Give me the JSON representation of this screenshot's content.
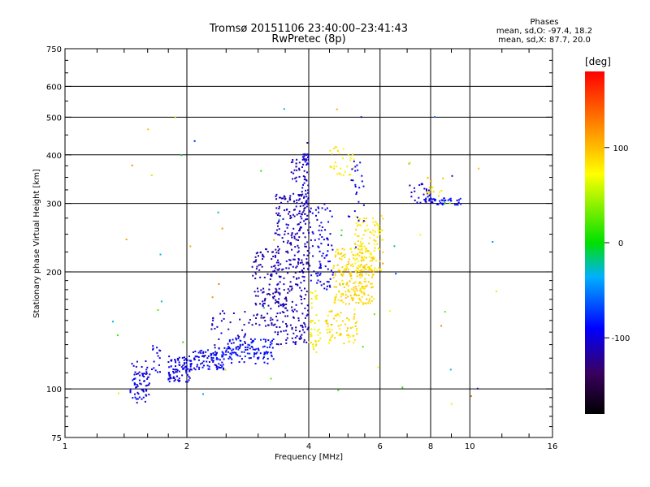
{
  "header": {
    "title_line1": "Tromsø 20151106 23:40:00–23:41:43",
    "title_line2": "RwPretec (8p)"
  },
  "info": {
    "heading": "Phases",
    "line_o": "mean, sd,O: -97.4, 18.2",
    "line_x": "mean, sd,X:  87.7, 20.0"
  },
  "colorbar": {
    "label": "[deg]",
    "ticks": [
      "100",
      "0",
      "-100"
    ],
    "tick_values": [
      100,
      0,
      -100
    ],
    "range": [
      -180,
      180
    ]
  },
  "chart_data": {
    "type": "scatter",
    "xlabel": "Frequency [MHz]",
    "ylabel": "Stationary phase Virtual Height [km]",
    "x_scale": "log",
    "y_scale": "log",
    "xlim": [
      1,
      16
    ],
    "ylim": [
      75,
      750
    ],
    "xticks": [
      1,
      2,
      4,
      6,
      8,
      10,
      16
    ],
    "xtick_labels": [
      "1",
      "2",
      "4",
      "6",
      "8",
      "10",
      "16"
    ],
    "yticks": [
      75,
      100,
      200,
      300,
      400,
      500,
      600,
      750
    ],
    "ytick_labels": [
      "75",
      "100",
      "200",
      "300",
      "400",
      "500",
      "600",
      "750"
    ],
    "x_gridlines": [
      2,
      4,
      6,
      8,
      10
    ],
    "y_gridlines": [
      100,
      200,
      300,
      400,
      500,
      600
    ],
    "grid": true,
    "color_scale": "phase (deg), rainbow from black (-180) to red (180)",
    "clusters": [
      {
        "f": [
          1.45,
          1.62
        ],
        "h": [
          92,
          118
        ],
        "phase": [
          -115,
          -85
        ],
        "n": 70
      },
      {
        "f": [
          1.62,
          1.72
        ],
        "h": [
          110,
          130
        ],
        "phase": [
          -110,
          -90
        ],
        "n": 16
      },
      {
        "f": [
          1.8,
          2.05
        ],
        "h": [
          104,
          122
        ],
        "phase": [
          -110,
          -85
        ],
        "n": 90
      },
      {
        "f": [
          2.05,
          2.5
        ],
        "h": [
          112,
          126
        ],
        "phase": [
          -110,
          -80
        ],
        "n": 90
      },
      {
        "f": [
          2.5,
          3.3
        ],
        "h": [
          116,
          135
        ],
        "phase": [
          -100,
          -75
        ],
        "n": 110
      },
      {
        "f": [
          2.3,
          2.9
        ],
        "h": [
          126,
          160
        ],
        "phase": [
          -120,
          -100
        ],
        "n": 45
      },
      {
        "f": [
          2.9,
          3.4
        ],
        "h": [
          145,
          230
        ],
        "phase": [
          -125,
          -105
        ],
        "n": 120
      },
      {
        "f": [
          3.3,
          4.0
        ],
        "h": [
          130,
          320
        ],
        "phase": [
          -125,
          -100
        ],
        "n": 330
      },
      {
        "f": [
          3.85,
          4.0
        ],
        "h": [
          300,
          405
        ],
        "phase": [
          -115,
          -95
        ],
        "n": 45
      },
      {
        "f": [
          3.6,
          3.8
        ],
        "h": [
          340,
          390
        ],
        "phase": [
          -125,
          -105
        ],
        "n": 20
      },
      {
        "f": [
          4.0,
          4.6
        ],
        "h": [
          180,
          300
        ],
        "phase": [
          -105,
          -90
        ],
        "n": 90
      },
      {
        "f": [
          4.0,
          4.3
        ],
        "h": [
          124,
          180
        ],
        "phase": [
          60,
          90
        ],
        "n": 40
      },
      {
        "f": [
          4.4,
          5.3
        ],
        "h": [
          130,
          160
        ],
        "phase": [
          70,
          100
        ],
        "n": 70
      },
      {
        "f": [
          4.6,
          5.8
        ],
        "h": [
          165,
          230
        ],
        "phase": [
          80,
          100
        ],
        "n": 220
      },
      {
        "f": [
          5.2,
          6.1
        ],
        "h": [
          200,
          280
        ],
        "phase": [
          70,
          95
        ],
        "n": 110
      },
      {
        "f": [
          4.5,
          5.2
        ],
        "h": [
          350,
          420
        ],
        "phase": [
          60,
          100
        ],
        "n": 30
      },
      {
        "f": [
          5.0,
          5.5
        ],
        "h": [
          270,
          400
        ],
        "phase": [
          -110,
          -90
        ],
        "n": 25
      },
      {
        "f": [
          7.1,
          8.0
        ],
        "h": [
          300,
          340
        ],
        "phase": [
          -110,
          -95
        ],
        "n": 30
      },
      {
        "f": [
          8.0,
          9.5
        ],
        "h": [
          297,
          310
        ],
        "phase": [
          -100,
          -80
        ],
        "n": 40
      },
      {
        "f": [
          7.8,
          8.6
        ],
        "h": [
          310,
          350
        ],
        "phase": [
          70,
          110
        ],
        "n": 16
      },
      {
        "f": [
          1.3,
          13.0
        ],
        "h": [
          90,
          560
        ],
        "phase": [
          -130,
          130
        ],
        "n": 60
      }
    ]
  }
}
